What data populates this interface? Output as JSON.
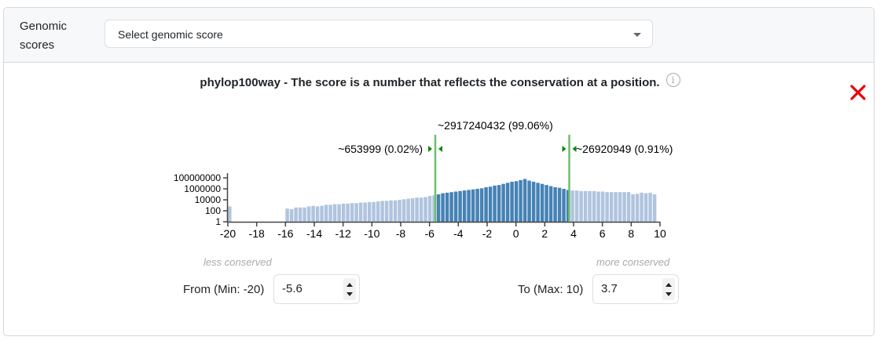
{
  "header": {
    "label": "Genomic scores",
    "select_placeholder": "Select genomic score"
  },
  "panel": {
    "title": "phylop100way - The score is a number that reflects the conservation at a position.",
    "info_icon": "info-circle-icon",
    "close_icon": "close-x-icon",
    "annotations": {
      "middle": "~2917240432 (99.06%)",
      "left": "~653999 (0.02%)",
      "right": "~26920949 (0.91%)"
    },
    "hints": {
      "left": "less conserved",
      "right": "more conserved"
    },
    "from": {
      "label": "From (Min: -20)",
      "value": "-5.6"
    },
    "to": {
      "label": "To (Max: 10)",
      "value": "3.7"
    }
  },
  "colors": {
    "bar_selected": "#4682b4",
    "bar_unselected": "#b0c4de",
    "marker_line": "#6cc06c",
    "marker_arrow": "#0a8a0a",
    "close": "#ee0000"
  },
  "chart_data": {
    "type": "bar",
    "title": "phylop100way - The score is a number that reflects the conservation at a position.",
    "xlabel": "",
    "ylabel": "",
    "yscale": "log",
    "xlim": [
      -20,
      10
    ],
    "ylim": [
      1,
      100000000
    ],
    "x_ticks": [
      "-20",
      "-18",
      "-16",
      "-14",
      "-12",
      "-10",
      "-8",
      "-6",
      "-4",
      "-2",
      "0",
      "2",
      "4",
      "6",
      "8",
      "10"
    ],
    "y_ticks": [
      "1",
      "100",
      "10000",
      "1000000",
      "100000000"
    ],
    "selected_range": [
      -5.6,
      3.7
    ],
    "bin_width": 0.3,
    "bins_start": [
      -20.0,
      -16.0,
      -15.7,
      -15.4,
      -15.1,
      -14.8,
      -14.5,
      -14.2,
      -13.9,
      -13.6,
      -13.3,
      -13.0,
      -12.7,
      -12.4,
      -12.1,
      -11.8,
      -11.5,
      -11.2,
      -10.9,
      -10.6,
      -10.3,
      -10.0,
      -9.7,
      -9.4,
      -9.1,
      -8.8,
      -8.5,
      -8.2,
      -7.9,
      -7.6,
      -7.3,
      -7.0,
      -6.7,
      -6.4,
      -6.1,
      -5.8,
      -5.5,
      -5.2,
      -4.9,
      -4.6,
      -4.3,
      -4.0,
      -3.7,
      -3.4,
      -3.1,
      -2.8,
      -2.5,
      -2.2,
      -1.9,
      -1.6,
      -1.3,
      -1.0,
      -0.7,
      -0.4,
      -0.1,
      0.2,
      0.5,
      0.8,
      1.1,
      1.4,
      1.7,
      2.0,
      2.3,
      2.6,
      2.9,
      3.2,
      3.5,
      3.8,
      4.1,
      4.4,
      4.7,
      5.0,
      5.3,
      5.6,
      5.9,
      6.2,
      6.5,
      6.8,
      7.1,
      7.4,
      7.7,
      8.0,
      8.3,
      8.6,
      8.9,
      9.2,
      9.5
    ],
    "values_log10": [
      2.8,
      2.4,
      2.3,
      2.6,
      2.6,
      2.6,
      2.8,
      2.9,
      2.8,
      2.9,
      3.1,
      3.1,
      3.2,
      3.2,
      3.3,
      3.3,
      3.4,
      3.4,
      3.5,
      3.5,
      3.6,
      3.6,
      3.7,
      3.8,
      3.8,
      3.9,
      3.9,
      4.0,
      4.1,
      4.2,
      4.3,
      4.4,
      4.4,
      4.5,
      4.7,
      4.8,
      5.0,
      5.2,
      5.3,
      5.4,
      5.5,
      5.6,
      5.7,
      5.8,
      5.9,
      6.0,
      6.1,
      6.3,
      6.4,
      6.6,
      6.7,
      6.9,
      7.1,
      7.3,
      7.4,
      7.6,
      7.8,
      7.5,
      7.3,
      7.1,
      6.9,
      6.7,
      6.5,
      6.3,
      6.2,
      6.0,
      5.8,
      5.7,
      5.7,
      5.6,
      5.6,
      5.6,
      5.6,
      5.5,
      5.5,
      5.4,
      5.4,
      5.4,
      5.4,
      5.4,
      5.4,
      5.0,
      5.1,
      5.3,
      5.2,
      5.3,
      5.0
    ],
    "annotations": {
      "below_min": "~653999 (0.02%)",
      "in_range": "~2917240432 (99.06%)",
      "above_max": "~26920949 (0.91%)"
    },
    "legend": null,
    "grid": false
  }
}
